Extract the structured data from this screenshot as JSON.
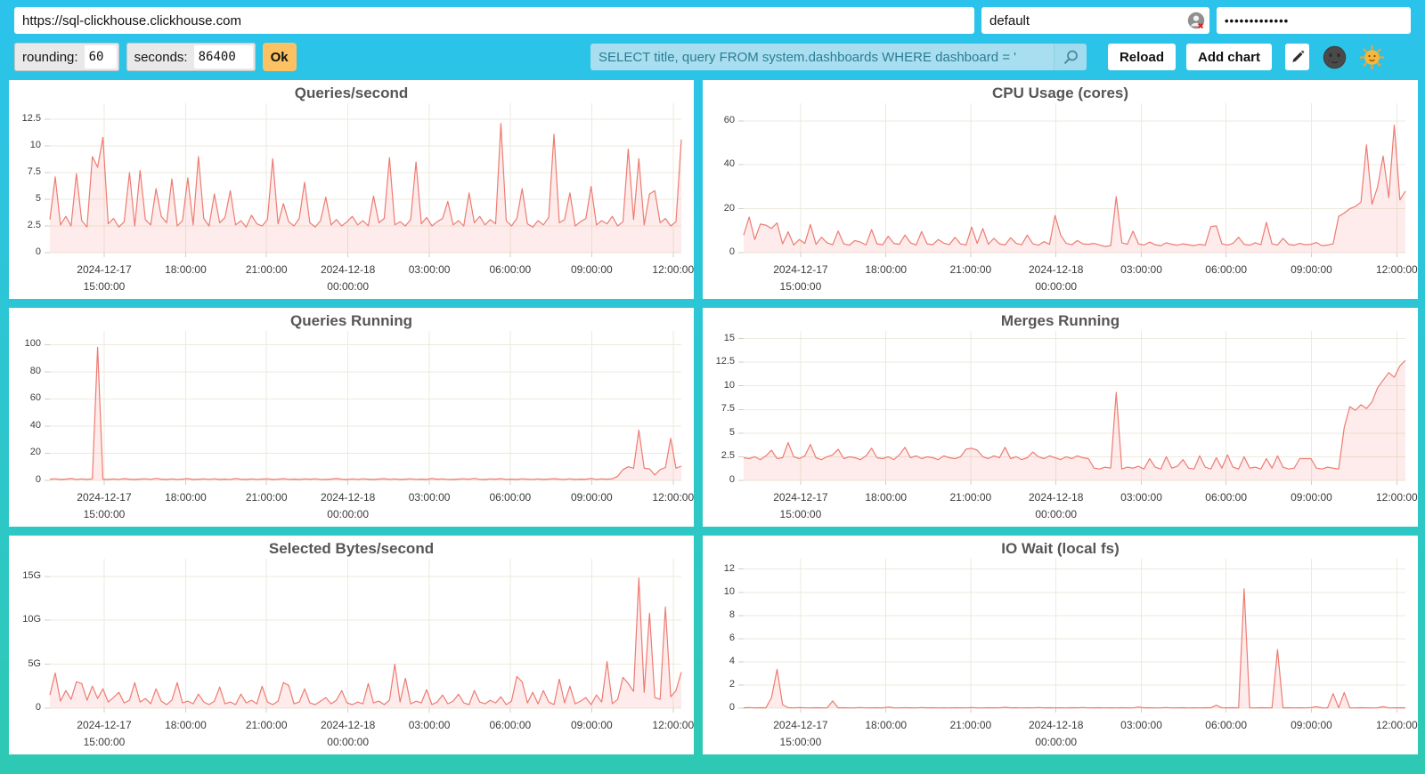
{
  "header": {
    "url_value": "https://sql-clickhouse.clickhouse.com",
    "user_value": "default",
    "user_field_icon": "password-manager-icon",
    "password_masked": "•••••••••••••"
  },
  "toolbar": {
    "rounding_label": "rounding:",
    "rounding_value": "60",
    "seconds_label": "seconds:",
    "seconds_value": "86400",
    "ok_label": "Ok",
    "query_value": "SELECT title, query FROM system.dashboards WHERE dashboard = '",
    "search_icon": "magnifier-icon",
    "reload_label": "Reload",
    "add_chart_label": "Add chart",
    "edit_icon": "pencil-icon",
    "dark_theme_icon": "moon-face-icon",
    "light_theme_icon": "sun-face-icon"
  },
  "theme": {
    "background_top": "#2bc3ec",
    "background_bottom": "#2ec9b3",
    "card_background": "#ffffff",
    "line_color": "#ee7b72",
    "fill_color": "rgba(239,123,113,0.14)",
    "grid_color": "#edeadd",
    "tick_color": "#cfcfcf",
    "axis_text_color": "#3b3b3b",
    "title_color": "#565656",
    "ok_button_color": "#fcc162",
    "search_bg_color": "#a9def0",
    "search_text_color": "#2a7e93"
  },
  "x_axis": {
    "ticks": [
      {
        "l1": "2024-12-17",
        "l2": "15:00:00",
        "f": 0.086
      },
      {
        "l1": "18:00:00",
        "l2": "",
        "f": 0.215
      },
      {
        "l1": "21:00:00",
        "l2": "",
        "f": 0.343
      },
      {
        "l1": "2024-12-18",
        "l2": "00:00:00",
        "f": 0.472
      },
      {
        "l1": "03:00:00",
        "l2": "",
        "f": 0.601
      },
      {
        "l1": "06:00:00",
        "l2": "",
        "f": 0.729
      },
      {
        "l1": "09:00:00",
        "l2": "",
        "f": 0.858
      },
      {
        "l1": "12:00:00",
        "l2": "",
        "f": 0.987
      }
    ]
  },
  "chart_data": [
    {
      "type": "area",
      "title": "Queries/second",
      "xlabel": "",
      "ylabel": "",
      "ylim": [
        0,
        14
      ],
      "ytick_values": [
        0,
        2.5,
        5,
        7.5,
        10,
        12.5
      ],
      "ytick_labels": [
        "0",
        "2.5",
        "5",
        "7.5",
        "10",
        "12.5"
      ],
      "values": [
        3.1,
        7.1,
        2.6,
        3.4,
        2.5,
        7.4,
        3.0,
        2.4,
        9.0,
        8.0,
        10.8,
        2.7,
        3.2,
        2.4,
        2.9,
        7.5,
        2.5,
        7.7,
        3.1,
        2.6,
        6.0,
        3.4,
        2.8,
        6.9,
        2.5,
        3.0,
        7.0,
        2.6,
        9.0,
        3.2,
        2.5,
        5.5,
        2.8,
        3.3,
        5.8,
        2.6,
        3.0,
        2.4,
        3.5,
        2.7,
        2.5,
        3.1,
        8.8,
        2.7,
        4.6,
        2.9,
        2.5,
        3.2,
        6.6,
        2.8,
        2.4,
        3.0,
        5.2,
        2.6,
        3.1,
        2.5,
        2.9,
        3.4,
        2.6,
        3.0,
        2.5,
        5.3,
        2.8,
        3.2,
        8.9,
        2.6,
        2.9,
        2.5,
        3.1,
        8.5,
        2.7,
        3.3,
        2.5,
        2.9,
        3.2,
        4.8,
        2.6,
        3.0,
        2.5,
        5.6,
        2.8,
        3.4,
        2.6,
        3.1,
        2.7,
        12.1,
        3.0,
        2.5,
        3.2,
        6.0,
        2.7,
        2.4,
        3.0,
        2.6,
        3.3,
        11.1,
        2.8,
        3.1,
        5.6,
        2.5,
        2.9,
        3.2,
        6.2,
        2.6,
        3.0,
        2.7,
        3.4,
        2.5,
        2.9,
        9.7,
        3.1,
        8.8,
        2.6,
        5.5,
        5.8,
        2.8,
        3.2,
        2.5,
        2.9,
        10.6
      ]
    },
    {
      "type": "area",
      "title": "CPU Usage (cores)",
      "xlabel": "",
      "ylabel": "",
      "ylim": [
        0,
        68
      ],
      "ytick_values": [
        0,
        20,
        40,
        60
      ],
      "ytick_labels": [
        "0",
        "20",
        "40",
        "60"
      ],
      "values": [
        8.0,
        16.2,
        6.0,
        13.0,
        12.5,
        11.0,
        13.5,
        4.0,
        9.5,
        3.5,
        6.0,
        4.2,
        12.8,
        3.8,
        7.0,
        4.5,
        3.6,
        9.8,
        4.0,
        3.4,
        5.5,
        4.8,
        3.5,
        10.5,
        4.0,
        3.6,
        7.5,
        4.2,
        3.8,
        8.0,
        4.5,
        3.5,
        9.6,
        4.0,
        3.6,
        6.0,
        4.3,
        3.7,
        7.0,
        4.0,
        3.5,
        11.6,
        4.2,
        11.0,
        3.8,
        6.5,
        4.0,
        3.5,
        6.8,
        4.2,
        3.6,
        8.0,
        4.0,
        3.4,
        5.0,
        3.8,
        16.9,
        8.0,
        4.2,
        3.6,
        5.5,
        4.0,
        3.8,
        4.2,
        3.5,
        2.8,
        3.2,
        25.5,
        4.5,
        3.8,
        9.8,
        4.0,
        3.5,
        4.8,
        3.6,
        3.2,
        4.5,
        3.8,
        3.4,
        4.0,
        3.6,
        3.2,
        3.8,
        3.4,
        11.8,
        12.2,
        4.0,
        3.5,
        4.2,
        7.0,
        3.8,
        3.4,
        4.5,
        3.6,
        13.8,
        4.0,
        3.5,
        6.5,
        3.8,
        3.4,
        4.2,
        3.6,
        3.8,
        4.6,
        3.2,
        3.5,
        4.0,
        16.5,
        18.0,
        20.0,
        21.0,
        23.0,
        49.0,
        22.0,
        30.0,
        44.0,
        25.0,
        58.0,
        24.0,
        28.0
      ]
    },
    {
      "type": "area",
      "title": "Queries Running",
      "xlabel": "",
      "ylabel": "",
      "ylim": [
        0,
        110
      ],
      "ytick_values": [
        0,
        20,
        40,
        60,
        80,
        100
      ],
      "ytick_labels": [
        "0",
        "20",
        "40",
        "60",
        "80",
        "100"
      ],
      "values": [
        0.9,
        1.2,
        0.7,
        1.0,
        1.4,
        0.8,
        1.1,
        0.7,
        1.2,
        98.0,
        0.9,
        0.7,
        1.1,
        0.8,
        1.3,
        0.9,
        0.7,
        1.0,
        1.2,
        0.8,
        1.5,
        0.9,
        0.7,
        1.1,
        0.8,
        1.0,
        1.3,
        0.7,
        0.9,
        1.1,
        0.8,
        1.2,
        0.7,
        1.0,
        0.8,
        1.4,
        0.9,
        0.7,
        1.1,
        0.8,
        1.0,
        1.2,
        0.7,
        0.9,
        1.3,
        0.8,
        1.0,
        0.7,
        1.1,
        0.9,
        1.2,
        0.8,
        0.7,
        1.0,
        1.4,
        0.9,
        0.7,
        1.1,
        0.8,
        1.2,
        0.9,
        0.7,
        1.0,
        1.3,
        0.8,
        1.1,
        0.7,
        0.9,
        1.2,
        0.8,
        1.0,
        0.7,
        1.4,
        0.9,
        1.1,
        0.8,
        0.7,
        1.0,
        1.2,
        0.9,
        1.5,
        0.8,
        0.7,
        1.1,
        0.9,
        1.3,
        0.8,
        1.0,
        0.7,
        1.2,
        0.9,
        0.8,
        1.1,
        0.7,
        1.0,
        1.3,
        0.9,
        0.8,
        1.2,
        0.7,
        1.0,
        0.9,
        1.4,
        0.8,
        1.1,
        0.9,
        1.2,
        3.0,
        8.0,
        10.0,
        9.0,
        37.0,
        9.0,
        8.5,
        4.0,
        8.0,
        9.5,
        31.0,
        9.0,
        10.5
      ]
    },
    {
      "type": "area",
      "title": "Merges Running",
      "xlabel": "",
      "ylabel": "",
      "ylim": [
        0,
        15.8
      ],
      "ytick_values": [
        0,
        2.5,
        5,
        7.5,
        10,
        12.5,
        15
      ],
      "ytick_labels": [
        "0",
        "2.5",
        "5",
        "7.5",
        "10",
        "12.5",
        "15"
      ],
      "values": [
        2.4,
        2.3,
        2.5,
        2.2,
        2.6,
        3.2,
        2.3,
        2.4,
        4.0,
        2.5,
        2.3,
        2.6,
        3.8,
        2.4,
        2.2,
        2.5,
        2.7,
        3.3,
        2.3,
        2.5,
        2.4,
        2.2,
        2.6,
        3.4,
        2.4,
        2.3,
        2.5,
        2.2,
        2.7,
        3.5,
        2.4,
        2.6,
        2.3,
        2.5,
        2.4,
        2.2,
        2.6,
        2.4,
        2.3,
        2.5,
        3.3,
        3.4,
        3.2,
        2.5,
        2.3,
        2.6,
        2.4,
        3.5,
        2.3,
        2.5,
        2.2,
        2.4,
        3.0,
        2.5,
        2.3,
        2.6,
        2.4,
        2.2,
        2.5,
        2.3,
        2.6,
        2.4,
        2.3,
        1.3,
        1.2,
        1.4,
        1.3,
        9.3,
        1.2,
        1.4,
        1.3,
        1.5,
        1.2,
        2.3,
        1.4,
        1.2,
        2.5,
        1.3,
        1.5,
        2.2,
        1.3,
        1.2,
        2.6,
        1.4,
        1.2,
        2.4,
        1.3,
        2.7,
        1.4,
        1.2,
        2.5,
        1.3,
        1.4,
        1.2,
        2.3,
        1.3,
        2.6,
        1.4,
        1.2,
        1.3,
        2.3,
        2.3,
        2.3,
        1.3,
        1.2,
        1.4,
        1.3,
        1.2,
        5.6,
        7.8,
        7.4,
        8.0,
        7.6,
        8.3,
        9.8,
        10.6,
        11.4,
        10.9,
        12.1,
        12.7
      ]
    },
    {
      "type": "area",
      "title": "Selected Bytes/second",
      "xlabel": "",
      "ylabel": "",
      "unit": "G",
      "ylim": [
        0,
        17
      ],
      "ytick_values": [
        0,
        5,
        10,
        15
      ],
      "ytick_labels": [
        "0",
        "5G",
        "10G",
        "15G"
      ],
      "values": [
        1.5,
        4.0,
        0.8,
        2.0,
        1.0,
        3.0,
        2.8,
        0.9,
        2.5,
        1.1,
        2.2,
        0.7,
        1.2,
        1.8,
        0.6,
        0.9,
        2.9,
        0.7,
        1.1,
        0.5,
        2.2,
        0.8,
        0.4,
        0.9,
        2.9,
        0.6,
        0.8,
        0.5,
        1.6,
        0.7,
        0.4,
        0.8,
        2.4,
        0.5,
        0.7,
        0.4,
        1.6,
        0.6,
        0.9,
        0.5,
        2.5,
        0.7,
        0.4,
        0.8,
        2.9,
        2.6,
        0.5,
        0.7,
        2.2,
        0.6,
        0.4,
        0.8,
        1.2,
        0.5,
        0.9,
        2.0,
        0.6,
        0.4,
        0.7,
        0.5,
        2.8,
        0.6,
        0.8,
        0.4,
        0.9,
        5.0,
        0.7,
        3.4,
        0.5,
        0.8,
        0.6,
        2.1,
        0.4,
        0.7,
        1.5,
        0.5,
        0.8,
        1.6,
        0.6,
        0.4,
        2.0,
        0.7,
        0.5,
        0.9,
        0.6,
        1.3,
        0.4,
        0.8,
        3.6,
        3.0,
        0.6,
        1.8,
        0.5,
        2.0,
        0.7,
        0.4,
        3.3,
        0.6,
        2.5,
        0.5,
        0.8,
        1.2,
        0.4,
        1.5,
        0.7,
        5.3,
        0.5,
        1.0,
        3.5,
        2.8,
        1.9,
        14.8,
        1.8,
        10.8,
        1.2,
        1.0,
        11.5,
        1.3,
        2.0,
        4.1
      ]
    },
    {
      "type": "area",
      "title": "IO Wait (local fs)",
      "xlabel": "",
      "ylabel": "",
      "ylim": [
        0,
        12.9
      ],
      "ytick_values": [
        0,
        2,
        4,
        6,
        8,
        10,
        12
      ],
      "ytick_labels": [
        "0",
        "2",
        "4",
        "6",
        "8",
        "10",
        "12"
      ],
      "values": [
        0.03,
        0.05,
        0.02,
        0.04,
        0.03,
        0.9,
        3.35,
        0.3,
        0.04,
        0.02,
        0.05,
        0.03,
        0.02,
        0.04,
        0.03,
        0.02,
        0.62,
        0.03,
        0.04,
        0.02,
        0.03,
        0.05,
        0.02,
        0.03,
        0.04,
        0.02,
        0.1,
        0.03,
        0.02,
        0.04,
        0.03,
        0.02,
        0.05,
        0.03,
        0.04,
        0.02,
        0.03,
        0.02,
        0.04,
        0.03,
        0.02,
        0.05,
        0.03,
        0.02,
        0.04,
        0.03,
        0.02,
        0.08,
        0.03,
        0.04,
        0.02,
        0.03,
        0.02,
        0.05,
        0.03,
        0.04,
        0.02,
        0.03,
        0.02,
        0.04,
        0.03,
        0.05,
        0.02,
        0.03,
        0.04,
        0.02,
        0.03,
        0.02,
        0.04,
        0.03,
        0.02,
        0.1,
        0.03,
        0.04,
        0.02,
        0.03,
        0.05,
        0.02,
        0.03,
        0.04,
        0.02,
        0.03,
        0.02,
        0.04,
        0.03,
        0.25,
        0.02,
        0.03,
        0.04,
        0.02,
        10.3,
        0.03,
        0.02,
        0.04,
        0.03,
        0.02,
        5.05,
        0.03,
        0.04,
        0.02,
        0.03,
        0.02,
        0.05,
        0.12,
        0.03,
        0.02,
        1.25,
        0.04,
        1.35,
        0.03,
        0.02,
        0.04,
        0.03,
        0.02,
        0.03,
        0.12,
        0.02,
        0.03,
        0.04,
        0.03
      ]
    }
  ]
}
